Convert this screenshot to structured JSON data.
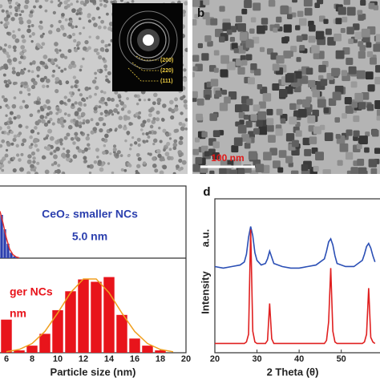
{
  "panels": {
    "b": {
      "label": "b",
      "scale_bar": "100 nm"
    },
    "inset": {
      "rings": [
        "(200)",
        "(220)",
        "(111)"
      ]
    }
  },
  "chart_data": [
    {
      "type": "histogram",
      "xlabel": "Particle size (nm)",
      "xlim": [
        5.5,
        20
      ],
      "xticks": [
        6,
        8,
        10,
        12,
        14,
        16,
        18,
        20
      ],
      "series": [
        {
          "label": "CeO₂ smaller NCs",
          "size_label": "5.0 nm",
          "color": "#2b3fae",
          "fit_color": "#e03030",
          "ylim": [
            0,
            40
          ],
          "bins": [
            5.5,
            5.75,
            6,
            6.25,
            6.5,
            6.75
          ],
          "values": [
            24,
            16,
            8,
            3,
            1
          ],
          "fit_x": [
            5.5,
            5.75,
            6,
            6.25,
            6.5,
            6.75,
            7
          ],
          "fit_y": [
            26,
            19,
            11,
            5,
            2,
            0.7,
            0.2
          ]
        },
        {
          "label": "ger NCs",
          "size_label": "nm",
          "color": "#e8141b",
          "fit_color": "#f0a020",
          "ylim": [
            0,
            40
          ],
          "bins": [
            5.5,
            6.5,
            7.5,
            8.5,
            9.5,
            10.5,
            11.5,
            12.5,
            13.5,
            14.5,
            15.5,
            16.5,
            17.5,
            18.5
          ],
          "values": [
            14,
            1,
            3,
            8,
            18,
            26,
            31,
            30,
            32,
            16,
            6,
            3,
            1
          ],
          "fit_x": [
            6,
            7,
            8,
            9,
            10,
            11,
            12,
            13,
            14,
            15,
            16,
            17,
            18,
            19
          ],
          "fit_y": [
            0.41,
            1.4,
            3.9,
            9.0,
            16.8,
            25.4,
            31.2,
            31.2,
            25.4,
            16.8,
            9.0,
            3.9,
            1.4,
            0.4
          ]
        }
      ]
    },
    {
      "type": "line",
      "label": "d",
      "xlabel": "2 Theta (θ)",
      "ylabel": "Intensity",
      "unit_label": "a.u.",
      "xlim": [
        20,
        59
      ],
      "xticks": [
        20,
        30,
        40,
        50
      ],
      "ylim": [
        0,
        100
      ],
      "x": [
        20,
        22,
        24,
        26,
        27,
        27.5,
        28,
        28.5,
        29,
        29.5,
        30,
        31,
        32,
        32.5,
        33,
        33.5,
        34,
        36,
        38,
        40,
        42,
        44,
        46,
        46.5,
        47,
        47.5,
        48,
        48.5,
        49,
        51,
        53,
        55,
        55.5,
        56,
        56.5,
        57,
        57.5,
        58
      ],
      "series": [
        {
          "color": "#2b4fb5",
          "values": [
            56,
            55,
            56,
            57,
            59,
            64,
            75,
            82,
            76,
            65,
            60,
            57,
            58,
            61,
            66,
            62,
            58,
            56,
            55,
            55,
            56,
            57,
            61,
            66,
            72,
            74,
            70,
            63,
            58,
            56,
            56,
            60,
            64,
            69,
            71,
            68,
            63,
            59
          ]
        },
        {
          "color": "#e02020",
          "values": [
            6,
            6,
            6,
            6,
            6,
            7,
            12,
            80,
            14,
            7,
            6,
            6,
            6,
            8,
            32,
            9,
            6,
            6,
            6,
            6,
            6,
            6,
            6,
            8,
            20,
            55,
            14,
            7,
            6,
            6,
            6,
            6,
            7,
            12,
            42,
            10,
            7,
            6
          ]
        }
      ]
    }
  ]
}
